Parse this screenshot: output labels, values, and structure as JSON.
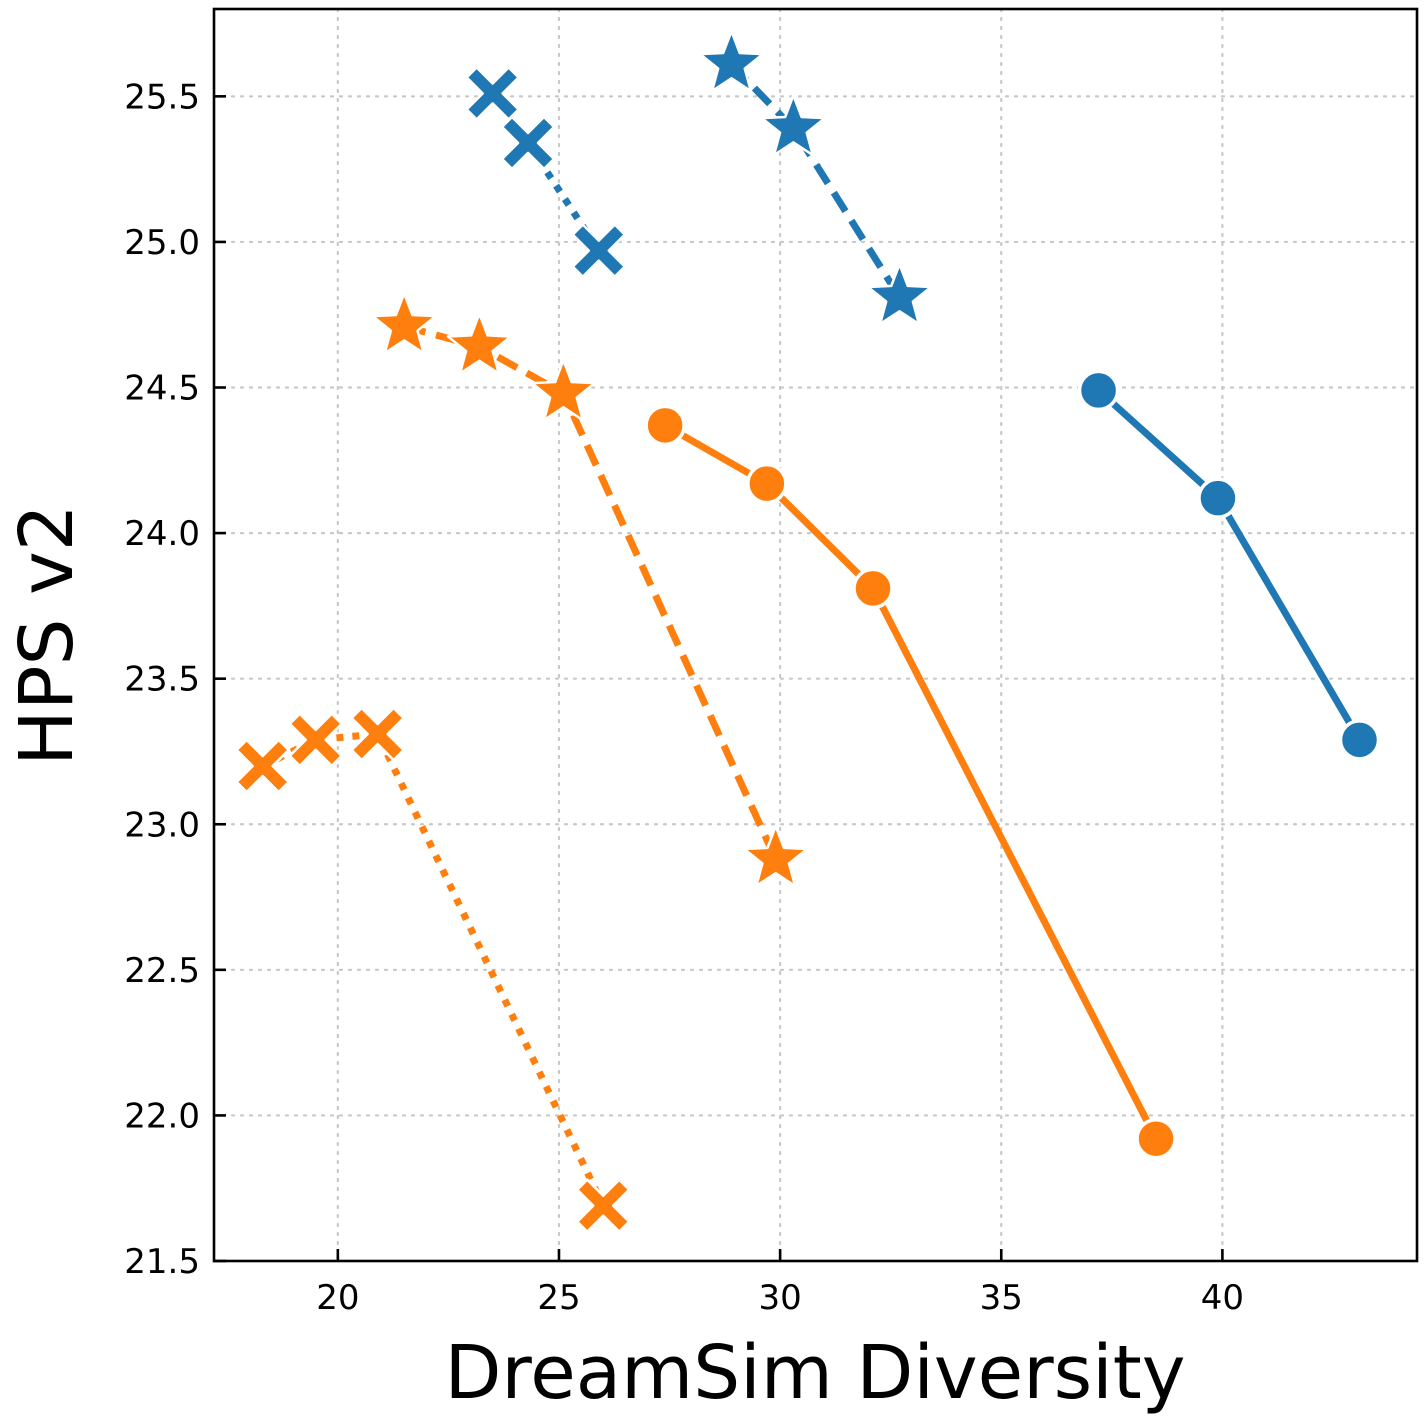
{
  "chart_data": {
    "type": "line",
    "title": "",
    "xlabel": "DreamSim Diversity",
    "ylabel": "HPS v2",
    "xlim": [
      17.2,
      44.4
    ],
    "ylim": [
      21.5,
      25.8
    ],
    "xticks": [
      "20",
      "25",
      "30",
      "35",
      "40"
    ],
    "yticks": [
      "21.5",
      "22.0",
      "22.5",
      "23.0",
      "23.5",
      "24.0",
      "24.5",
      "25.0",
      "25.5"
    ],
    "grid": true,
    "series": [
      {
        "color": "#1f77b4",
        "marker": "circle",
        "linestyle": "solid",
        "points": [
          [
            37.2,
            24.49
          ],
          [
            39.9,
            24.12
          ],
          [
            43.1,
            23.29
          ]
        ]
      },
      {
        "color": "#1f77b4",
        "marker": "star",
        "linestyle": "dashed",
        "points": [
          [
            28.9,
            25.61
          ],
          [
            30.3,
            25.39
          ],
          [
            32.7,
            24.81
          ]
        ]
      },
      {
        "color": "#1f77b4",
        "marker": "x",
        "linestyle": "dotted",
        "points": [
          [
            23.5,
            25.51
          ],
          [
            24.3,
            25.34
          ],
          [
            25.9,
            24.97
          ]
        ]
      },
      {
        "color": "#ff7f0e",
        "marker": "circle",
        "linestyle": "solid",
        "points": [
          [
            27.4,
            24.37
          ],
          [
            29.7,
            24.17
          ],
          [
            32.1,
            23.81
          ],
          [
            38.5,
            21.92
          ]
        ]
      },
      {
        "color": "#ff7f0e",
        "marker": "star",
        "linestyle": "dashed",
        "points": [
          [
            21.5,
            24.71
          ],
          [
            23.2,
            24.64
          ],
          [
            25.1,
            24.48
          ],
          [
            29.9,
            22.88
          ]
        ]
      },
      {
        "color": "#ff7f0e",
        "marker": "x",
        "linestyle": "dotted",
        "points": [
          [
            18.3,
            23.2
          ],
          [
            19.5,
            23.29
          ],
          [
            20.9,
            23.31
          ],
          [
            26.0,
            21.69
          ]
        ]
      }
    ]
  }
}
